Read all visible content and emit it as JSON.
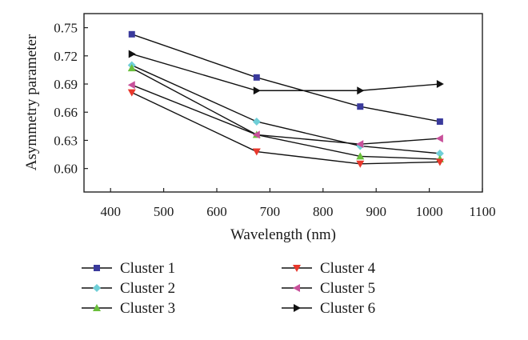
{
  "chart_data": {
    "type": "line",
    "title": "",
    "xlabel": "Wavelength (nm)",
    "ylabel": "Asymmetry parameter",
    "xlim": [
      350,
      1100
    ],
    "ylim": [
      0.575,
      0.765
    ],
    "xticks": [
      400,
      500,
      600,
      700,
      800,
      900,
      1000,
      1100
    ],
    "yticks": [
      "0.60",
      "0.63",
      "0.66",
      "0.69",
      "0.72",
      "0.75"
    ],
    "x": [
      440,
      675,
      870,
      1020
    ],
    "legend_position": "below",
    "series": [
      {
        "name": "Cluster 1",
        "values": [
          0.743,
          0.697,
          0.666,
          0.65
        ],
        "marker": "square",
        "color": "#3a3a9c"
      },
      {
        "name": "Cluster 2",
        "values": [
          0.71,
          0.65,
          0.624,
          0.616
        ],
        "marker": "diamond",
        "color": "#6fcfd8"
      },
      {
        "name": "Cluster 3",
        "values": [
          0.707,
          0.636,
          0.613,
          0.61
        ],
        "marker": "triangle-up",
        "color": "#6abf3b"
      },
      {
        "name": "Cluster 4",
        "values": [
          0.681,
          0.618,
          0.605,
          0.607
        ],
        "marker": "triangle-down",
        "color": "#e8382c"
      },
      {
        "name": "Cluster 5",
        "values": [
          0.689,
          0.636,
          0.626,
          0.632
        ],
        "marker": "triangle-left",
        "color": "#c8509a"
      },
      {
        "name": "Cluster 6",
        "values": [
          0.722,
          0.683,
          0.683,
          0.69
        ],
        "marker": "triangle-right",
        "color": "#111111"
      }
    ]
  }
}
